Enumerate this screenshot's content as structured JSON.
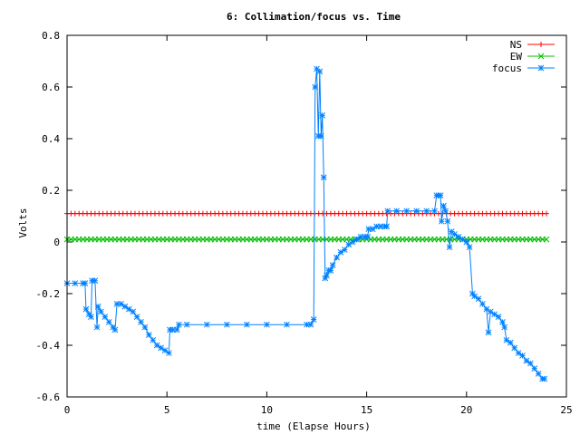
{
  "chart_data": {
    "type": "line",
    "title": "6: Collimation/focus vs. Time",
    "xlabel": "time (Elapse Hours)",
    "ylabel": "Volts",
    "xlim": [
      0,
      25
    ],
    "ylim": [
      -0.6,
      0.8
    ],
    "x_ticks": [
      0,
      5,
      10,
      15,
      20,
      25
    ],
    "y_ticks": [
      -0.6,
      -0.4,
      -0.2,
      0,
      0.2,
      0.4,
      0.6,
      0.8
    ],
    "x_tick_labels": [
      "0",
      "5",
      "10",
      "15",
      "20",
      "25"
    ],
    "y_tick_labels": [
      "-0.6",
      "-0.4",
      "-0.2",
      "0",
      "0.2",
      "0.4",
      "0.6",
      "0.8"
    ],
    "grid": false,
    "legend_position": "top-right",
    "series": [
      {
        "name": "NS",
        "color": "#ff0000",
        "marker": "plus",
        "x_range": [
          0,
          24
        ],
        "step": 0.2,
        "constant_value": 0.11
      },
      {
        "name": "EW",
        "color": "#00c000",
        "marker": "cross",
        "x_range": [
          0,
          24
        ],
        "step": 0.2,
        "constant_value": 0.01
      },
      {
        "name": "focus",
        "color": "#0080ff",
        "marker": "star",
        "points": [
          [
            0.0,
            -0.16
          ],
          [
            0.4,
            -0.16
          ],
          [
            0.8,
            -0.16
          ],
          [
            0.9,
            -0.16
          ],
          [
            0.95,
            -0.26
          ],
          [
            1.1,
            -0.28
          ],
          [
            1.2,
            -0.29
          ],
          [
            1.25,
            -0.15
          ],
          [
            1.4,
            -0.15
          ],
          [
            1.5,
            -0.33
          ],
          [
            1.55,
            -0.25
          ],
          [
            1.7,
            -0.27
          ],
          [
            1.9,
            -0.29
          ],
          [
            2.1,
            -0.31
          ],
          [
            2.3,
            -0.33
          ],
          [
            2.4,
            -0.34
          ],
          [
            2.5,
            -0.24
          ],
          [
            2.7,
            -0.24
          ],
          [
            2.9,
            -0.25
          ],
          [
            3.1,
            -0.26
          ],
          [
            3.3,
            -0.27
          ],
          [
            3.5,
            -0.29
          ],
          [
            3.7,
            -0.31
          ],
          [
            3.9,
            -0.33
          ],
          [
            4.1,
            -0.36
          ],
          [
            4.3,
            -0.38
          ],
          [
            4.5,
            -0.4
          ],
          [
            4.7,
            -0.41
          ],
          [
            4.9,
            -0.42
          ],
          [
            5.1,
            -0.43
          ],
          [
            5.15,
            -0.34
          ],
          [
            5.3,
            -0.34
          ],
          [
            5.5,
            -0.34
          ],
          [
            5.6,
            -0.32
          ],
          [
            6.0,
            -0.32
          ],
          [
            7.0,
            -0.32
          ],
          [
            8.0,
            -0.32
          ],
          [
            9.0,
            -0.32
          ],
          [
            10.0,
            -0.32
          ],
          [
            11.0,
            -0.32
          ],
          [
            12.0,
            -0.32
          ],
          [
            12.2,
            -0.32
          ],
          [
            12.35,
            -0.3
          ],
          [
            12.42,
            0.6
          ],
          [
            12.5,
            0.67
          ],
          [
            12.58,
            0.41
          ],
          [
            12.65,
            0.66
          ],
          [
            12.72,
            0.41
          ],
          [
            12.78,
            0.49
          ],
          [
            12.85,
            0.25
          ],
          [
            12.92,
            -0.14
          ],
          [
            13.0,
            -0.13
          ],
          [
            13.1,
            -0.11
          ],
          [
            13.2,
            -0.11
          ],
          [
            13.3,
            -0.09
          ],
          [
            13.5,
            -0.06
          ],
          [
            13.7,
            -0.04
          ],
          [
            13.9,
            -0.03
          ],
          [
            14.1,
            -0.01
          ],
          [
            14.3,
            0.0
          ],
          [
            14.5,
            0.01
          ],
          [
            14.7,
            0.02
          ],
          [
            14.9,
            0.02
          ],
          [
            15.05,
            0.02
          ],
          [
            15.1,
            0.05
          ],
          [
            15.3,
            0.05
          ],
          [
            15.5,
            0.06
          ],
          [
            15.7,
            0.06
          ],
          [
            15.9,
            0.06
          ],
          [
            16.0,
            0.06
          ],
          [
            16.05,
            0.12
          ],
          [
            16.5,
            0.12
          ],
          [
            17.0,
            0.12
          ],
          [
            17.5,
            0.12
          ],
          [
            18.0,
            0.12
          ],
          [
            18.4,
            0.12
          ],
          [
            18.5,
            0.18
          ],
          [
            18.6,
            0.18
          ],
          [
            18.7,
            0.18
          ],
          [
            18.75,
            0.08
          ],
          [
            18.85,
            0.14
          ],
          [
            18.95,
            0.12
          ],
          [
            19.05,
            0.08
          ],
          [
            19.15,
            -0.02
          ],
          [
            19.25,
            0.04
          ],
          [
            19.4,
            0.03
          ],
          [
            19.6,
            0.02
          ],
          [
            19.8,
            0.01
          ],
          [
            20.0,
            0.0
          ],
          [
            20.15,
            -0.02
          ],
          [
            20.3,
            -0.2
          ],
          [
            20.4,
            -0.21
          ],
          [
            20.6,
            -0.22
          ],
          [
            20.8,
            -0.24
          ],
          [
            21.0,
            -0.26
          ],
          [
            21.1,
            -0.35
          ],
          [
            21.2,
            -0.27
          ],
          [
            21.4,
            -0.28
          ],
          [
            21.6,
            -0.29
          ],
          [
            21.8,
            -0.31
          ],
          [
            21.9,
            -0.33
          ],
          [
            22.0,
            -0.38
          ],
          [
            22.2,
            -0.39
          ],
          [
            22.4,
            -0.41
          ],
          [
            22.6,
            -0.43
          ],
          [
            22.8,
            -0.44
          ],
          [
            23.0,
            -0.46
          ],
          [
            23.2,
            -0.47
          ],
          [
            23.4,
            -0.49
          ],
          [
            23.6,
            -0.51
          ],
          [
            23.8,
            -0.53
          ],
          [
            23.9,
            -0.53
          ]
        ]
      }
    ]
  }
}
